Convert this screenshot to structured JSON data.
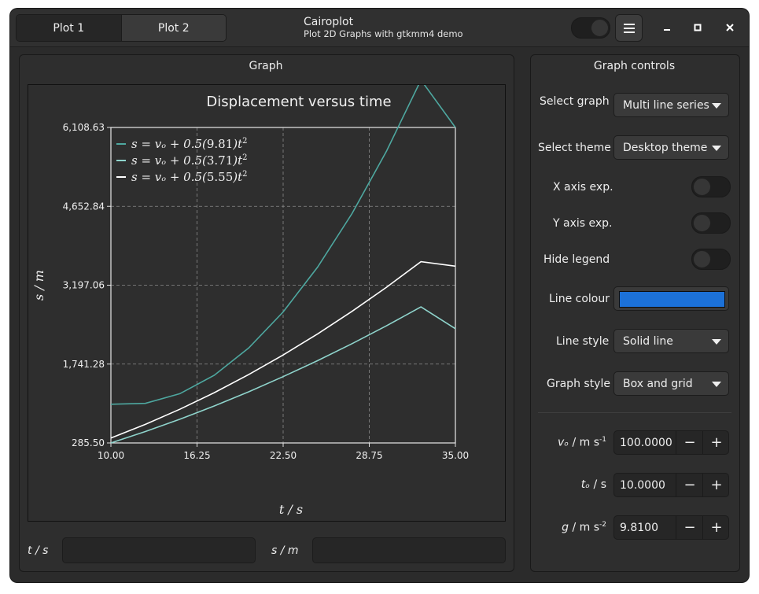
{
  "header": {
    "tabs": [
      {
        "label": "Plot 1",
        "active": true
      },
      {
        "label": "Plot 2",
        "active": false
      }
    ],
    "title": "Cairoplot",
    "subtitle": "Plot 2D Graphs with gtkmm4 demo",
    "icons": {
      "menu": "hamburger-icon",
      "minimize": "minimize-icon",
      "maximize": "maximize-icon",
      "close": "close-icon"
    }
  },
  "graph_panel": {
    "label": "Graph",
    "readout_t_label": "t / s",
    "readout_s_label": "s / m",
    "readout_t_value": "",
    "readout_s_value": ""
  },
  "chart_data": {
    "type": "line",
    "title": "Displacement versus time",
    "xlabel": "t / s",
    "ylabel": "s / m",
    "xlim": [
      10.0,
      35.0
    ],
    "ylim": [
      285.5,
      6108.63
    ],
    "xticks": [
      "10.00",
      "16.25",
      "22.50",
      "28.75",
      "35.00"
    ],
    "yticks": [
      "285.50",
      "1,741.28",
      "3,197.06",
      "4,652.84",
      "6,108.63"
    ],
    "grid": true,
    "legend_position": "top-left",
    "series": [
      {
        "name": "s = vₒ + 0.5(9.81)t²",
        "legend_prefix": "s = vₒ + 0.5(",
        "legend_g": "9.81",
        "legend_suffix": ")t",
        "g": 9.81,
        "color": "#4ea8a0",
        "x": [
          10,
          12.5,
          15,
          17.5,
          20,
          22.5,
          25,
          27.5,
          30,
          32.5,
          35
        ],
        "y": [
          1000,
          1016,
          1194,
          1535,
          2038,
          2703,
          3531,
          4520,
          5671,
          6985,
          6108.63
        ]
      },
      {
        "name": "s = vₒ + 0.5(3.71)t²",
        "legend_prefix": "s = vₒ + 0.5(",
        "legend_g": "3.71",
        "legend_suffix": ")t",
        "g": 3.71,
        "color": "#8fd4cc",
        "x": [
          10,
          12.5,
          15,
          17.5,
          20,
          22.5,
          25,
          27.5,
          30,
          32.5,
          35
        ],
        "y": [
          285.5,
          496,
          723,
          968,
          1230,
          1509,
          1805,
          2118,
          2448,
          2796,
          2394
        ]
      },
      {
        "name": "s = vₒ + 0.5(5.55)t²",
        "legend_prefix": "s = vₒ + 0.5(",
        "legend_g": "5.55",
        "legend_suffix": ")t",
        "g": 5.55,
        "color": "#ffffff",
        "x": [
          10,
          12.5,
          15,
          17.5,
          20,
          22.5,
          25,
          27.5,
          30,
          32.5,
          35
        ],
        "y": [
          377,
          628,
          907,
          1213,
          1547,
          1909,
          2298,
          2715,
          3159,
          3631,
          3549
        ]
      }
    ]
  },
  "controls": {
    "label": "Graph controls",
    "select_graph": {
      "label": "Select graph",
      "value": "Multi line series"
    },
    "select_theme": {
      "label": "Select theme",
      "value": "Desktop theme"
    },
    "x_axis_exp": {
      "label": "X axis exp.",
      "on": false
    },
    "y_axis_exp": {
      "label": "Y axis exp.",
      "on": false
    },
    "hide_legend": {
      "label": "Hide legend",
      "on": false
    },
    "line_colour": {
      "label": "Line colour",
      "color": "#1c71d8"
    },
    "line_style": {
      "label": "Line style",
      "value": "Solid line"
    },
    "graph_style": {
      "label": "Graph style",
      "value": "Box and grid"
    },
    "v0": {
      "label_var": "vₒ",
      "label_unit": " / m s",
      "label_sup": "-1",
      "value": "100.0000"
    },
    "t0": {
      "label_var": "tₒ",
      "label_unit": " / s",
      "label_sup": "",
      "value": "10.0000"
    },
    "g": {
      "label_var": "g",
      "label_unit": " / m s",
      "label_sup": "-2",
      "value": "9.8100"
    }
  }
}
